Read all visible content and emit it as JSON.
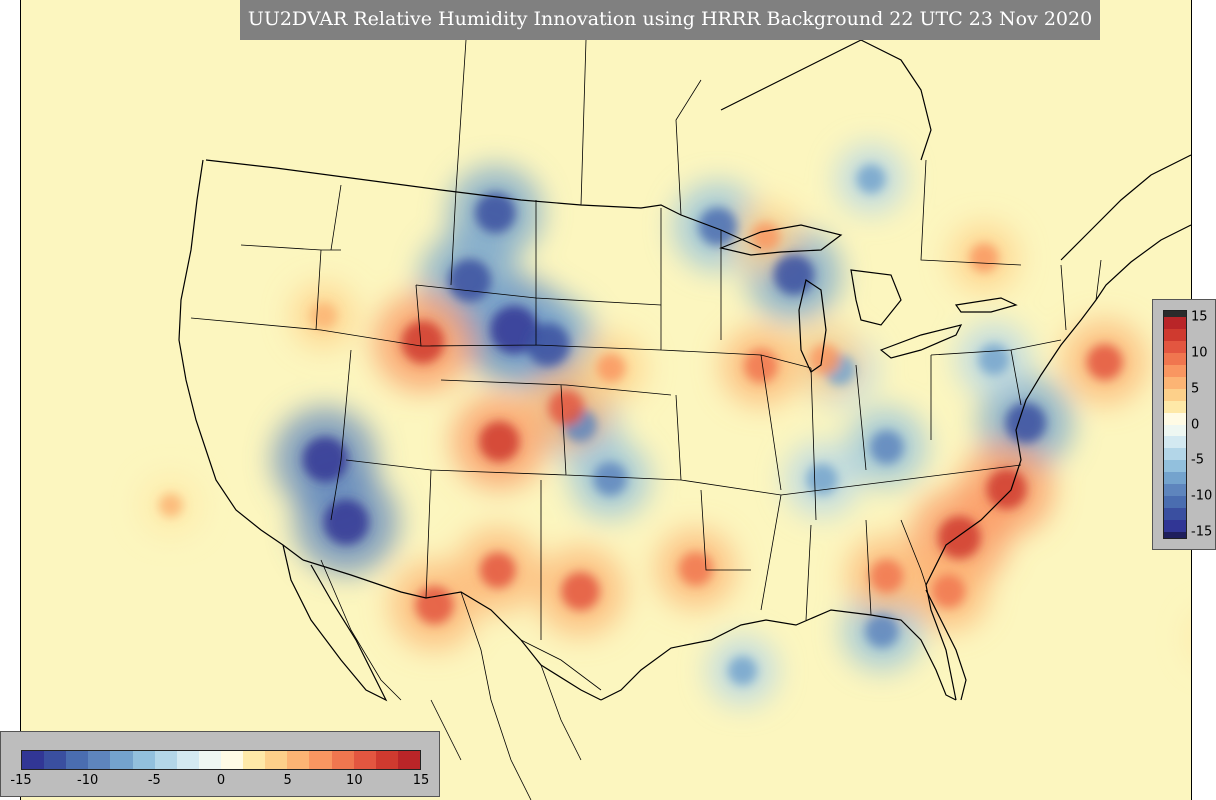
{
  "title": "UU2DVAR Relative Humidity Innovation using HRRR Background 22 UTC 23 Nov 2020",
  "colorbar": {
    "min": -15,
    "max": 15,
    "ticks": [
      "-15",
      "-10",
      "-5",
      "0",
      "5",
      "10",
      "15"
    ],
    "tick_values": [
      -15,
      -10,
      -5,
      0,
      5,
      10,
      15
    ],
    "colors": [
      "#313695",
      "#3a4fa0",
      "#4a6db0",
      "#5e85bd",
      "#74a3cd",
      "#92c0dd",
      "#b3d6e8",
      "#d3e9f1",
      "#eef7f2",
      "#fffbe5",
      "#fee9a8",
      "#fdd08a",
      "#fcb474",
      "#f99661",
      "#f0764f",
      "#e35640",
      "#cf3a2f",
      "#b92528"
    ],
    "top_color": "#2b2b2b",
    "bottom_color": "#1f1f5c"
  },
  "map": {
    "background_color": "#fcf6bf",
    "anomalies": [
      {
        "lon": -111.0,
        "lat": 44.0,
        "value": -15
      },
      {
        "lon": -114.5,
        "lat": 47.0,
        "value": -13
      },
      {
        "lon": -113.0,
        "lat": 50.5,
        "value": -12
      },
      {
        "lon": -108.5,
        "lat": 43.0,
        "value": -13
      },
      {
        "lon": -123.5,
        "lat": 38.5,
        "value": -14
      },
      {
        "lon": -121.5,
        "lat": 34.8,
        "value": -14
      },
      {
        "lon": -91.0,
        "lat": 46.5,
        "value": -12
      },
      {
        "lon": -96.5,
        "lat": 49.0,
        "value": -11
      },
      {
        "lon": -75.2,
        "lat": 39.8,
        "value": -12
      },
      {
        "lon": -85.0,
        "lat": 37.5,
        "value": -9
      },
      {
        "lon": -88.0,
        "lat": 41.5,
        "value": -8
      },
      {
        "lon": -89.5,
        "lat": 35.5,
        "value": -8
      },
      {
        "lon": -106.0,
        "lat": 38.5,
        "value": -9
      },
      {
        "lon": -103.8,
        "lat": 35.5,
        "value": -9
      },
      {
        "lon": -95.0,
        "lat": 25.0,
        "value": -7
      },
      {
        "lon": -86.0,
        "lat": 27.5,
        "value": -9
      },
      {
        "lon": -85.0,
        "lat": 52.0,
        "value": -7
      },
      {
        "lon": -77.0,
        "lat": 43.0,
        "value": -8
      },
      {
        "lon": -117.5,
        "lat": 44.0,
        "value": 13
      },
      {
        "lon": -111.5,
        "lat": 38.0,
        "value": 12
      },
      {
        "lon": -107.0,
        "lat": 39.5,
        "value": 10
      },
      {
        "lon": -80.5,
        "lat": 33.0,
        "value": 13
      },
      {
        "lon": -77.0,
        "lat": 36.0,
        "value": 12
      },
      {
        "lon": -105.5,
        "lat": 29.5,
        "value": 11
      },
      {
        "lon": -98.0,
        "lat": 30.5,
        "value": 9
      },
      {
        "lon": -93.5,
        "lat": 41.5,
        "value": 9
      },
      {
        "lon": -89.0,
        "lat": 42.0,
        "value": 8
      },
      {
        "lon": -69.0,
        "lat": 44.0,
        "value": 10
      },
      {
        "lon": -111.0,
        "lat": 31.0,
        "value": 10
      },
      {
        "lon": -115.0,
        "lat": 29.5,
        "value": 11
      },
      {
        "lon": -81.5,
        "lat": 30.0,
        "value": 9
      },
      {
        "lon": -85.5,
        "lat": 30.5,
        "value": 9
      },
      {
        "lon": -77.0,
        "lat": 48.5,
        "value": 7
      },
      {
        "lon": -125.0,
        "lat": 46.5,
        "value": 6
      },
      {
        "lon": -93.0,
        "lat": 48.5,
        "value": 7
      },
      {
        "lon": -104.0,
        "lat": 41.5,
        "value": 7
      },
      {
        "lon": -134.0,
        "lat": 38.0,
        "value": 5
      },
      {
        "lon": -64.0,
        "lat": 30.0,
        "value": 5
      }
    ]
  }
}
